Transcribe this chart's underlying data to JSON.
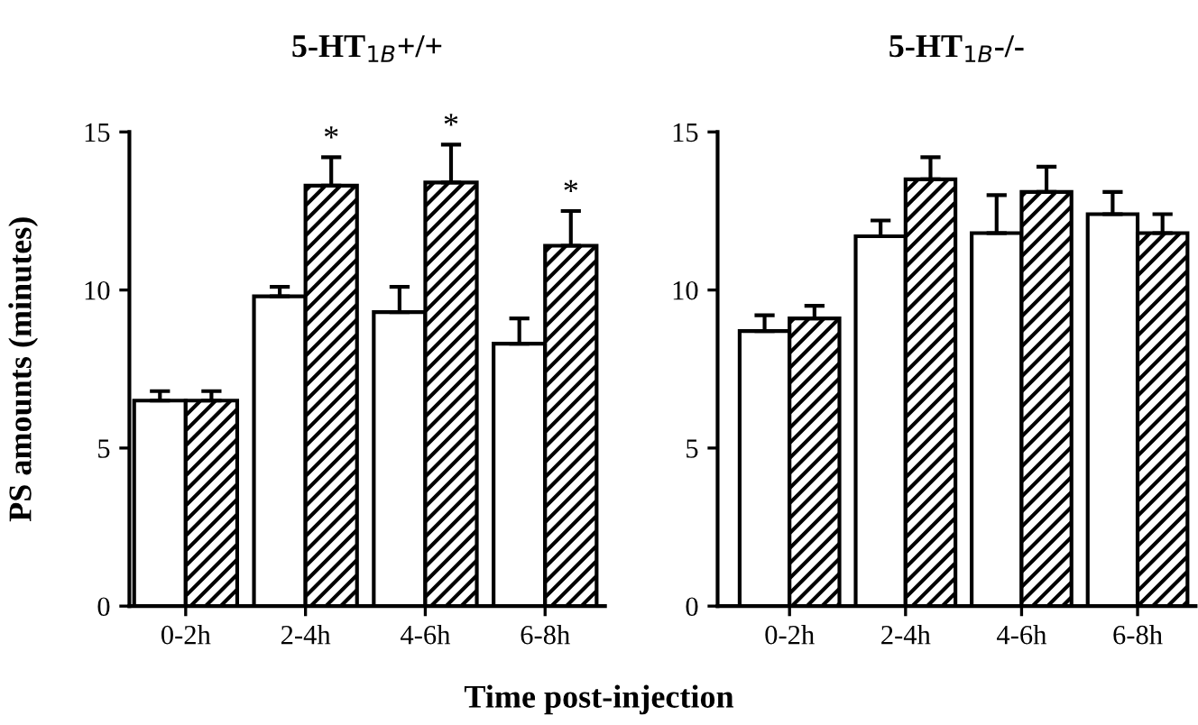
{
  "chart_data": [
    {
      "type": "bar",
      "title": "5-HT$_{1B}$+/+",
      "ylabel": "PS amounts (minutes)",
      "xlabel": "Time post-injection",
      "categories": [
        "0-2h",
        "2-4h",
        "4-6h",
        "6-8h"
      ],
      "series": [
        {
          "color": "#ffffff",
          "values": [
            6.5,
            9.8,
            9.3,
            8.3
          ],
          "errors": [
            [
              6.5,
              6.8
            ],
            [
              9.8,
              10.1
            ],
            [
              9.3,
              10.1
            ],
            [
              8.3,
              9.1
            ]
          ]
        },
        {
          "color": "#000000",
          "values": [
            6.5,
            13.3,
            13.4,
            11.4
          ],
          "errors": [
            [
              6.5,
              6.8
            ],
            [
              13.3,
              14.2
            ],
            [
              13.4,
              14.6
            ],
            [
              11.4,
              12.5
            ]
          ]
        }
      ],
      "annotations": [
        "*",
        "*",
        "*"
      ],
      "ylim": [
        0,
        15
      ],
      "yticks": [
        0,
        5,
        10,
        15
      ],
      "grid": false,
      "legend": false
    },
    {
      "type": "bar",
      "title": "5-HT$_{1B}$-/-",
      "categories": [
        "0-2h",
        "2-4h",
        "4-6h",
        "6-8h"
      ],
      "series": [
        {
          "color": "#ffffff",
          "values": [
            8.7,
            11.7,
            11.8,
            12.4
          ],
          "errors": [
            [
              8.7,
              9.2
            ],
            [
              11.7,
              12.2
            ],
            [
              11.8,
              13.0
            ],
            [
              12.4,
              13.1
            ]
          ]
        },
        {
          "color": "#000000",
          "values": [
            9.1,
            13.5,
            13.1,
            11.8
          ],
          "errors": [
            [
              9.1,
              9.5
            ],
            [
              13.5,
              14.2
            ],
            [
              13.1,
              13.9
            ],
            [
              11.8,
              12.4
            ]
          ]
        }
      ],
      "ylim": [
        0,
        15
      ],
      "yticks": [
        0,
        5,
        10,
        15
      ],
      "grid": false,
      "legend": false
    }
  ]
}
